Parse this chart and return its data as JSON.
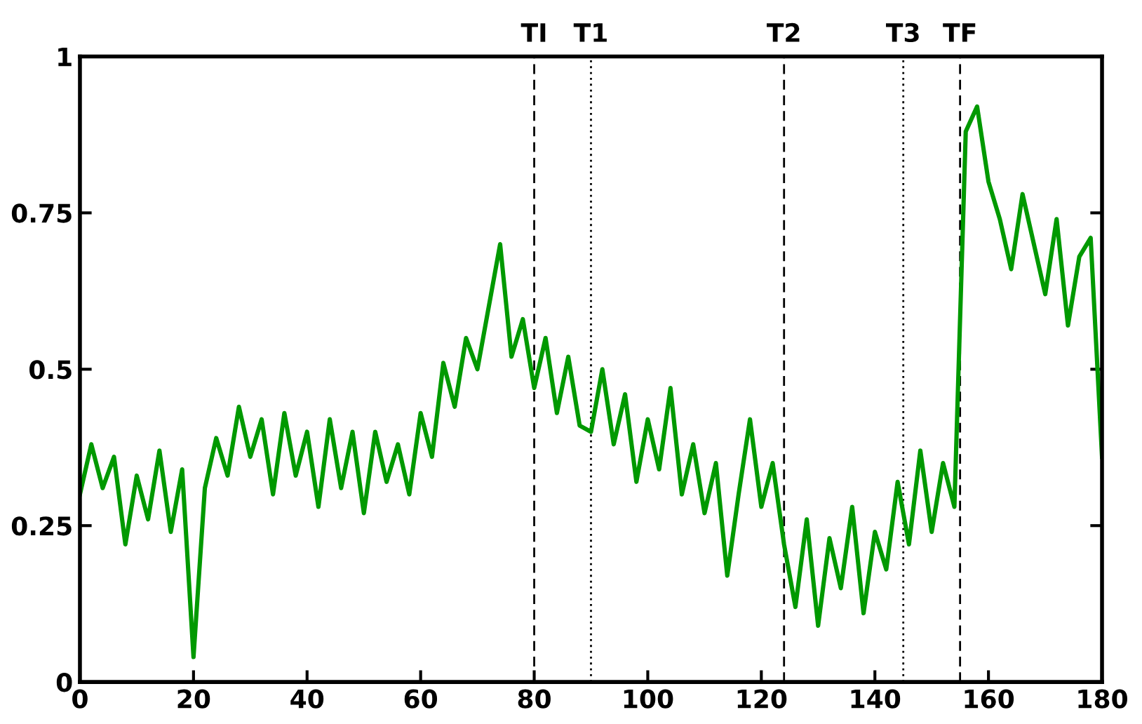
{
  "chart_data": {
    "type": "line",
    "x": [
      0,
      2,
      4,
      6,
      8,
      10,
      12,
      14,
      16,
      18,
      20,
      22,
      24,
      26,
      28,
      30,
      32,
      34,
      36,
      38,
      40,
      42,
      44,
      46,
      48,
      50,
      52,
      54,
      56,
      58,
      60,
      62,
      64,
      66,
      68,
      70,
      72,
      74,
      76,
      78,
      80,
      82,
      84,
      86,
      88,
      90,
      92,
      94,
      96,
      98,
      100,
      102,
      104,
      106,
      108,
      110,
      112,
      114,
      116,
      118,
      120,
      122,
      124,
      126,
      128,
      130,
      132,
      134,
      136,
      138,
      140,
      142,
      144,
      146,
      148,
      150,
      152,
      154,
      156,
      158,
      160,
      162,
      164,
      166,
      168,
      170,
      172,
      174,
      176,
      178,
      180
    ],
    "series": [
      {
        "color": "#009900",
        "values": [
          0.3,
          0.38,
          0.31,
          0.36,
          0.22,
          0.33,
          0.26,
          0.37,
          0.24,
          0.34,
          0.04,
          0.31,
          0.39,
          0.33,
          0.44,
          0.36,
          0.42,
          0.3,
          0.43,
          0.33,
          0.4,
          0.28,
          0.42,
          0.31,
          0.4,
          0.27,
          0.4,
          0.32,
          0.38,
          0.3,
          0.43,
          0.36,
          0.51,
          0.44,
          0.55,
          0.5,
          0.6,
          0.7,
          0.52,
          0.58,
          0.47,
          0.55,
          0.43,
          0.52,
          0.41,
          0.4,
          0.5,
          0.38,
          0.46,
          0.32,
          0.42,
          0.34,
          0.47,
          0.3,
          0.38,
          0.27,
          0.35,
          0.17,
          0.3,
          0.42,
          0.28,
          0.35,
          0.22,
          0.12,
          0.26,
          0.09,
          0.23,
          0.15,
          0.28,
          0.11,
          0.24,
          0.18,
          0.32,
          0.22,
          0.37,
          0.24,
          0.35,
          0.28,
          0.88,
          0.92,
          0.8,
          0.74,
          0.66,
          0.78,
          0.7,
          0.62,
          0.74,
          0.57,
          0.68,
          0.71,
          0.36
        ]
      }
    ],
    "xlim": [
      0,
      180
    ],
    "ylim": [
      0,
      1
    ],
    "xticks": [
      0,
      20,
      40,
      60,
      80,
      100,
      120,
      140,
      160,
      180
    ],
    "yticks": [
      0,
      0.25,
      0.5,
      0.75,
      1
    ],
    "ref_lines": [
      {
        "axis": "x",
        "value": 80,
        "label": "TI",
        "line_style": "dashed",
        "color": "#000000"
      },
      {
        "axis": "x",
        "value": 90,
        "label": "T1",
        "line_style": "dotted",
        "color": "#000000"
      },
      {
        "axis": "x",
        "value": 124,
        "label": "T2",
        "line_style": "dashed",
        "color": "#000000"
      },
      {
        "axis": "x",
        "value": 145,
        "label": "T3",
        "line_style": "dotted",
        "color": "#000000"
      },
      {
        "axis": "x",
        "value": 155,
        "label": "TF",
        "line_style": "dashed",
        "color": "#000000"
      }
    ],
    "grid": false,
    "marker": "none",
    "line_style": "solid"
  }
}
